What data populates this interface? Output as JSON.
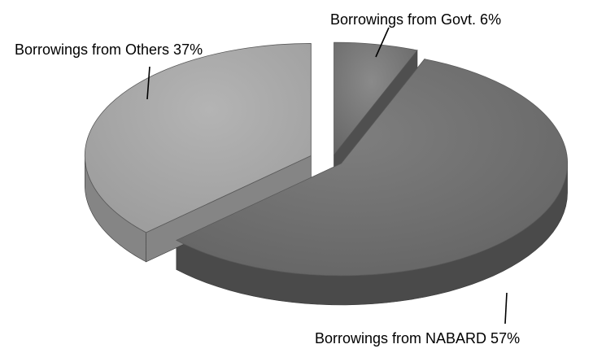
{
  "chart_data": {
    "type": "pie",
    "style": "3d-exploded",
    "categories": [
      "Borrowings from Govt.",
      "Borrowings from NABARD",
      "Borrowings from Others"
    ],
    "values": [
      6,
      57,
      37
    ],
    "labels": [
      "Borrowings from Govt. 6%",
      "Borrowings from NABARD 57%",
      "Borrowings from Others 37%"
    ],
    "colors": [
      "#6e6e6e",
      "#6b6b6b",
      "#a3a3a3"
    ],
    "legend": "none"
  }
}
